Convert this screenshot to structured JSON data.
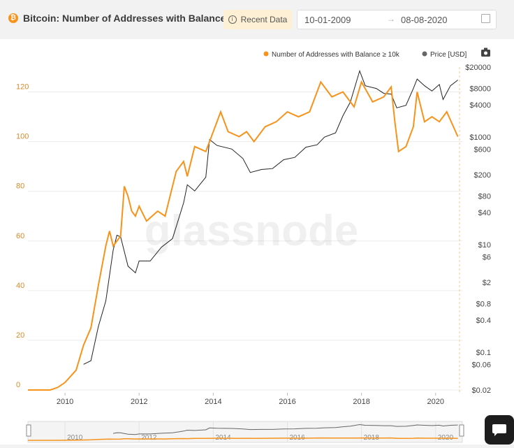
{
  "header": {
    "title": "Bitcoin: Number of Addresses with Balance ≥...",
    "coin_symbol": "₿",
    "recent_label": "Recent Data",
    "date_from": "10-01-2009",
    "date_to": "08-08-2020"
  },
  "watermark": "glassnode",
  "colors": {
    "orange": "#f7931a",
    "price": "#222222",
    "accent_bg": "#fdf0d5"
  },
  "chart_data": {
    "type": "line",
    "legend": [
      "Number of Addresses with Balance ≥ 10k",
      "Price [USD]"
    ],
    "legend_position": "top-right",
    "x_ticks": [
      "2010",
      "2012",
      "2014",
      "2016",
      "2018",
      "2020"
    ],
    "y_left_ticks": [
      "0",
      "20",
      "40",
      "60",
      "80",
      "100",
      "120"
    ],
    "y_left_range": [
      0,
      130
    ],
    "y_right_ticks": [
      "$0.02",
      "$0.06",
      "$0.1",
      "$0.4",
      "$0.8",
      "$2",
      "$6",
      "$10",
      "$40",
      "$80",
      "$200",
      "$600",
      "$1000",
      "$4000",
      "$8000",
      "$20000"
    ],
    "y_right_scale": "log",
    "y_right_range": [
      0.02,
      20000
    ],
    "grid": "horizontal",
    "navigator_ticks": [
      "2010",
      "2012",
      "2014",
      "2016",
      "2018",
      "2020"
    ],
    "series": [
      {
        "name": "Number of Addresses with Balance ≥ 10k",
        "axis": "left",
        "points": [
          [
            2009.0,
            0
          ],
          [
            2009.6,
            0
          ],
          [
            2009.8,
            1
          ],
          [
            2010.0,
            3
          ],
          [
            2010.3,
            8
          ],
          [
            2010.5,
            18
          ],
          [
            2010.7,
            25
          ],
          [
            2010.9,
            42
          ],
          [
            2011.1,
            58
          ],
          [
            2011.2,
            64
          ],
          [
            2011.3,
            58
          ],
          [
            2011.5,
            62
          ],
          [
            2011.6,
            82
          ],
          [
            2011.7,
            78
          ],
          [
            2011.8,
            72
          ],
          [
            2011.9,
            70
          ],
          [
            2012.0,
            74
          ],
          [
            2012.2,
            68
          ],
          [
            2012.5,
            72
          ],
          [
            2012.7,
            70
          ],
          [
            2012.8,
            76
          ],
          [
            2013.0,
            88
          ],
          [
            2013.2,
            92
          ],
          [
            2013.3,
            86
          ],
          [
            2013.5,
            98
          ],
          [
            2013.8,
            96
          ],
          [
            2014.0,
            104
          ],
          [
            2014.2,
            112
          ],
          [
            2014.4,
            104
          ],
          [
            2014.7,
            102
          ],
          [
            2014.9,
            104
          ],
          [
            2015.1,
            100
          ],
          [
            2015.4,
            106
          ],
          [
            2015.7,
            108
          ],
          [
            2016.0,
            112
          ],
          [
            2016.3,
            110
          ],
          [
            2016.6,
            112
          ],
          [
            2016.9,
            124
          ],
          [
            2017.2,
            118
          ],
          [
            2017.5,
            120
          ],
          [
            2017.8,
            114
          ],
          [
            2018.0,
            124
          ],
          [
            2018.3,
            116
          ],
          [
            2018.6,
            118
          ],
          [
            2018.8,
            122
          ],
          [
            2018.9,
            108
          ],
          [
            2019.0,
            96
          ],
          [
            2019.2,
            98
          ],
          [
            2019.4,
            106
          ],
          [
            2019.5,
            120
          ],
          [
            2019.7,
            108
          ],
          [
            2019.9,
            110
          ],
          [
            2020.1,
            108
          ],
          [
            2020.3,
            112
          ],
          [
            2020.6,
            102
          ]
        ]
      },
      {
        "name": "Price [USD]",
        "axis": "right",
        "points": [
          [
            2010.5,
            0.06
          ],
          [
            2010.7,
            0.07
          ],
          [
            2010.9,
            0.3
          ],
          [
            2011.1,
            0.9
          ],
          [
            2011.3,
            8
          ],
          [
            2011.4,
            15
          ],
          [
            2011.5,
            14
          ],
          [
            2011.7,
            4
          ],
          [
            2011.9,
            3
          ],
          [
            2012.0,
            5
          ],
          [
            2012.3,
            5
          ],
          [
            2012.6,
            9
          ],
          [
            2012.9,
            13
          ],
          [
            2013.2,
            60
          ],
          [
            2013.3,
            130
          ],
          [
            2013.5,
            100
          ],
          [
            2013.8,
            180
          ],
          [
            2013.9,
            900
          ],
          [
            2014.1,
            700
          ],
          [
            2014.5,
            600
          ],
          [
            2014.8,
            400
          ],
          [
            2015.0,
            220
          ],
          [
            2015.3,
            250
          ],
          [
            2015.6,
            260
          ],
          [
            2015.9,
            380
          ],
          [
            2016.2,
            420
          ],
          [
            2016.5,
            650
          ],
          [
            2016.8,
            720
          ],
          [
            2017.0,
            1000
          ],
          [
            2017.3,
            1200
          ],
          [
            2017.5,
            2500
          ],
          [
            2017.7,
            4500
          ],
          [
            2017.95,
            17000
          ],
          [
            2018.1,
            9000
          ],
          [
            2018.4,
            8000
          ],
          [
            2018.6,
            6500
          ],
          [
            2018.8,
            6300
          ],
          [
            2018.95,
            3500
          ],
          [
            2019.2,
            3900
          ],
          [
            2019.4,
            8000
          ],
          [
            2019.5,
            12000
          ],
          [
            2019.7,
            9000
          ],
          [
            2019.9,
            7200
          ],
          [
            2020.1,
            9500
          ],
          [
            2020.2,
            5000
          ],
          [
            2020.4,
            9000
          ],
          [
            2020.6,
            11500
          ]
        ]
      }
    ]
  }
}
